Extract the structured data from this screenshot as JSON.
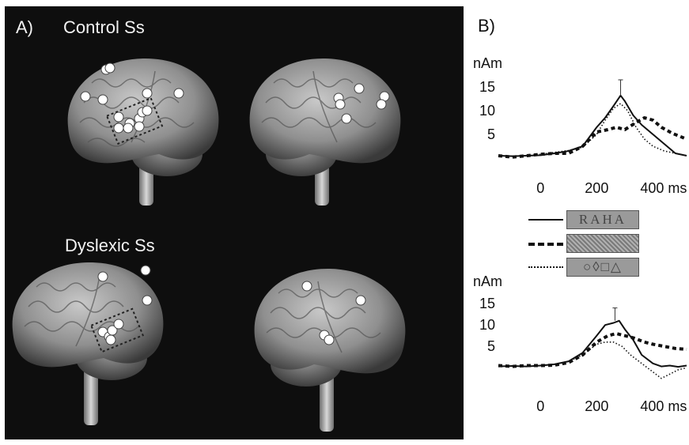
{
  "panel_a": {
    "label": "A)",
    "groups": [
      {
        "label": "Control Ss"
      },
      {
        "label": "Dyslexic Ss"
      }
    ]
  },
  "panel_b": {
    "label": "B)",
    "legend": [
      {
        "style": "solid",
        "stimulus": "RAHA"
      },
      {
        "style": "dashed",
        "stimulus": "noise"
      },
      {
        "style": "dotted",
        "stimulus": "○◊□△"
      }
    ]
  },
  "chart_data": [
    {
      "type": "line",
      "title": "",
      "ylabel": "nAm",
      "xunit": "ms",
      "xticks": [
        "0",
        "200",
        "400 ms"
      ],
      "yticks": [
        "5",
        "10",
        "15"
      ],
      "xlim": [
        -150,
        520
      ],
      "ylim": [
        0,
        18
      ],
      "series": [
        {
          "style": "solid",
          "x": [
            -150,
            -100,
            -50,
            0,
            50,
            100,
            150,
            200,
            230,
            260,
            285,
            300,
            330,
            360,
            400,
            440,
            480,
            520
          ],
          "y": [
            0.5,
            0.4,
            0.5,
            0.6,
            1.0,
            1.5,
            2.5,
            6.5,
            8.5,
            11,
            13.2,
            12,
            9,
            7,
            5,
            3,
            1,
            0.5
          ]
        },
        {
          "style": "dashed",
          "x": [
            -150,
            -100,
            -50,
            0,
            50,
            100,
            150,
            200,
            240,
            270,
            300,
            340,
            370,
            400,
            430,
            470,
            520
          ],
          "y": [
            0.5,
            0.2,
            0.5,
            0.8,
            1.0,
            1.0,
            2.5,
            5.5,
            6.0,
            6.5,
            6.0,
            7.5,
            8.5,
            8.0,
            6.5,
            5.2,
            4.0
          ]
        },
        {
          "style": "dotted",
          "x": [
            -150,
            -100,
            -50,
            0,
            50,
            100,
            150,
            200,
            230,
            260,
            285,
            310,
            340,
            370,
            400,
            440,
            480,
            520
          ],
          "y": [
            0.5,
            0.4,
            0.5,
            0.8,
            1.2,
            1.6,
            2.3,
            5.0,
            8.0,
            10.5,
            11.5,
            10.0,
            6.5,
            4.0,
            2.5,
            1.5,
            1.0,
            0.5
          ]
        }
      ],
      "error_bar": {
        "x": 285,
        "y": 13.2,
        "err": 3.3
      }
    },
    {
      "type": "line",
      "title": "",
      "ylabel": "nAm",
      "xunit": "ms",
      "xticks": [
        "0",
        "200",
        "400 ms"
      ],
      "yticks": [
        "5",
        "10",
        "15"
      ],
      "xlim": [
        -150,
        520
      ],
      "ylim": [
        -2,
        18
      ],
      "series": [
        {
          "style": "solid",
          "x": [
            -150,
            -100,
            -50,
            0,
            50,
            100,
            150,
            200,
            230,
            260,
            280,
            300,
            330,
            360,
            400,
            430,
            460,
            490,
            520
          ],
          "y": [
            0.3,
            0.4,
            0.3,
            0.5,
            0.8,
            1.5,
            3.5,
            7.5,
            10,
            10.5,
            11,
            9,
            6.5,
            3,
            1,
            0.3,
            0.5,
            0.2,
            0.5
          ]
        },
        {
          "style": "dashed",
          "x": [
            -150,
            -100,
            -50,
            0,
            50,
            100,
            150,
            200,
            240,
            270,
            300,
            330,
            370,
            400,
            440,
            480,
            520
          ],
          "y": [
            0.5,
            0.3,
            0.5,
            0.5,
            0.6,
            1.2,
            3.0,
            6.0,
            7.5,
            8.0,
            7.5,
            7.0,
            6.0,
            5.5,
            5.0,
            4.5,
            4.3
          ]
        },
        {
          "style": "dotted",
          "x": [
            -150,
            -100,
            -50,
            0,
            50,
            100,
            150,
            200,
            230,
            260,
            290,
            320,
            360,
            400,
            430,
            460,
            490,
            520
          ],
          "y": [
            0.3,
            0.4,
            0.3,
            0.5,
            0.8,
            1.5,
            3.0,
            5.5,
            6.0,
            6.0,
            5.0,
            3.0,
            1.0,
            -1.0,
            -2.5,
            -1.5,
            -0.5,
            0.0
          ]
        }
      ],
      "error_bar": {
        "x": 265,
        "y": 11,
        "err": 3.0
      }
    }
  ]
}
